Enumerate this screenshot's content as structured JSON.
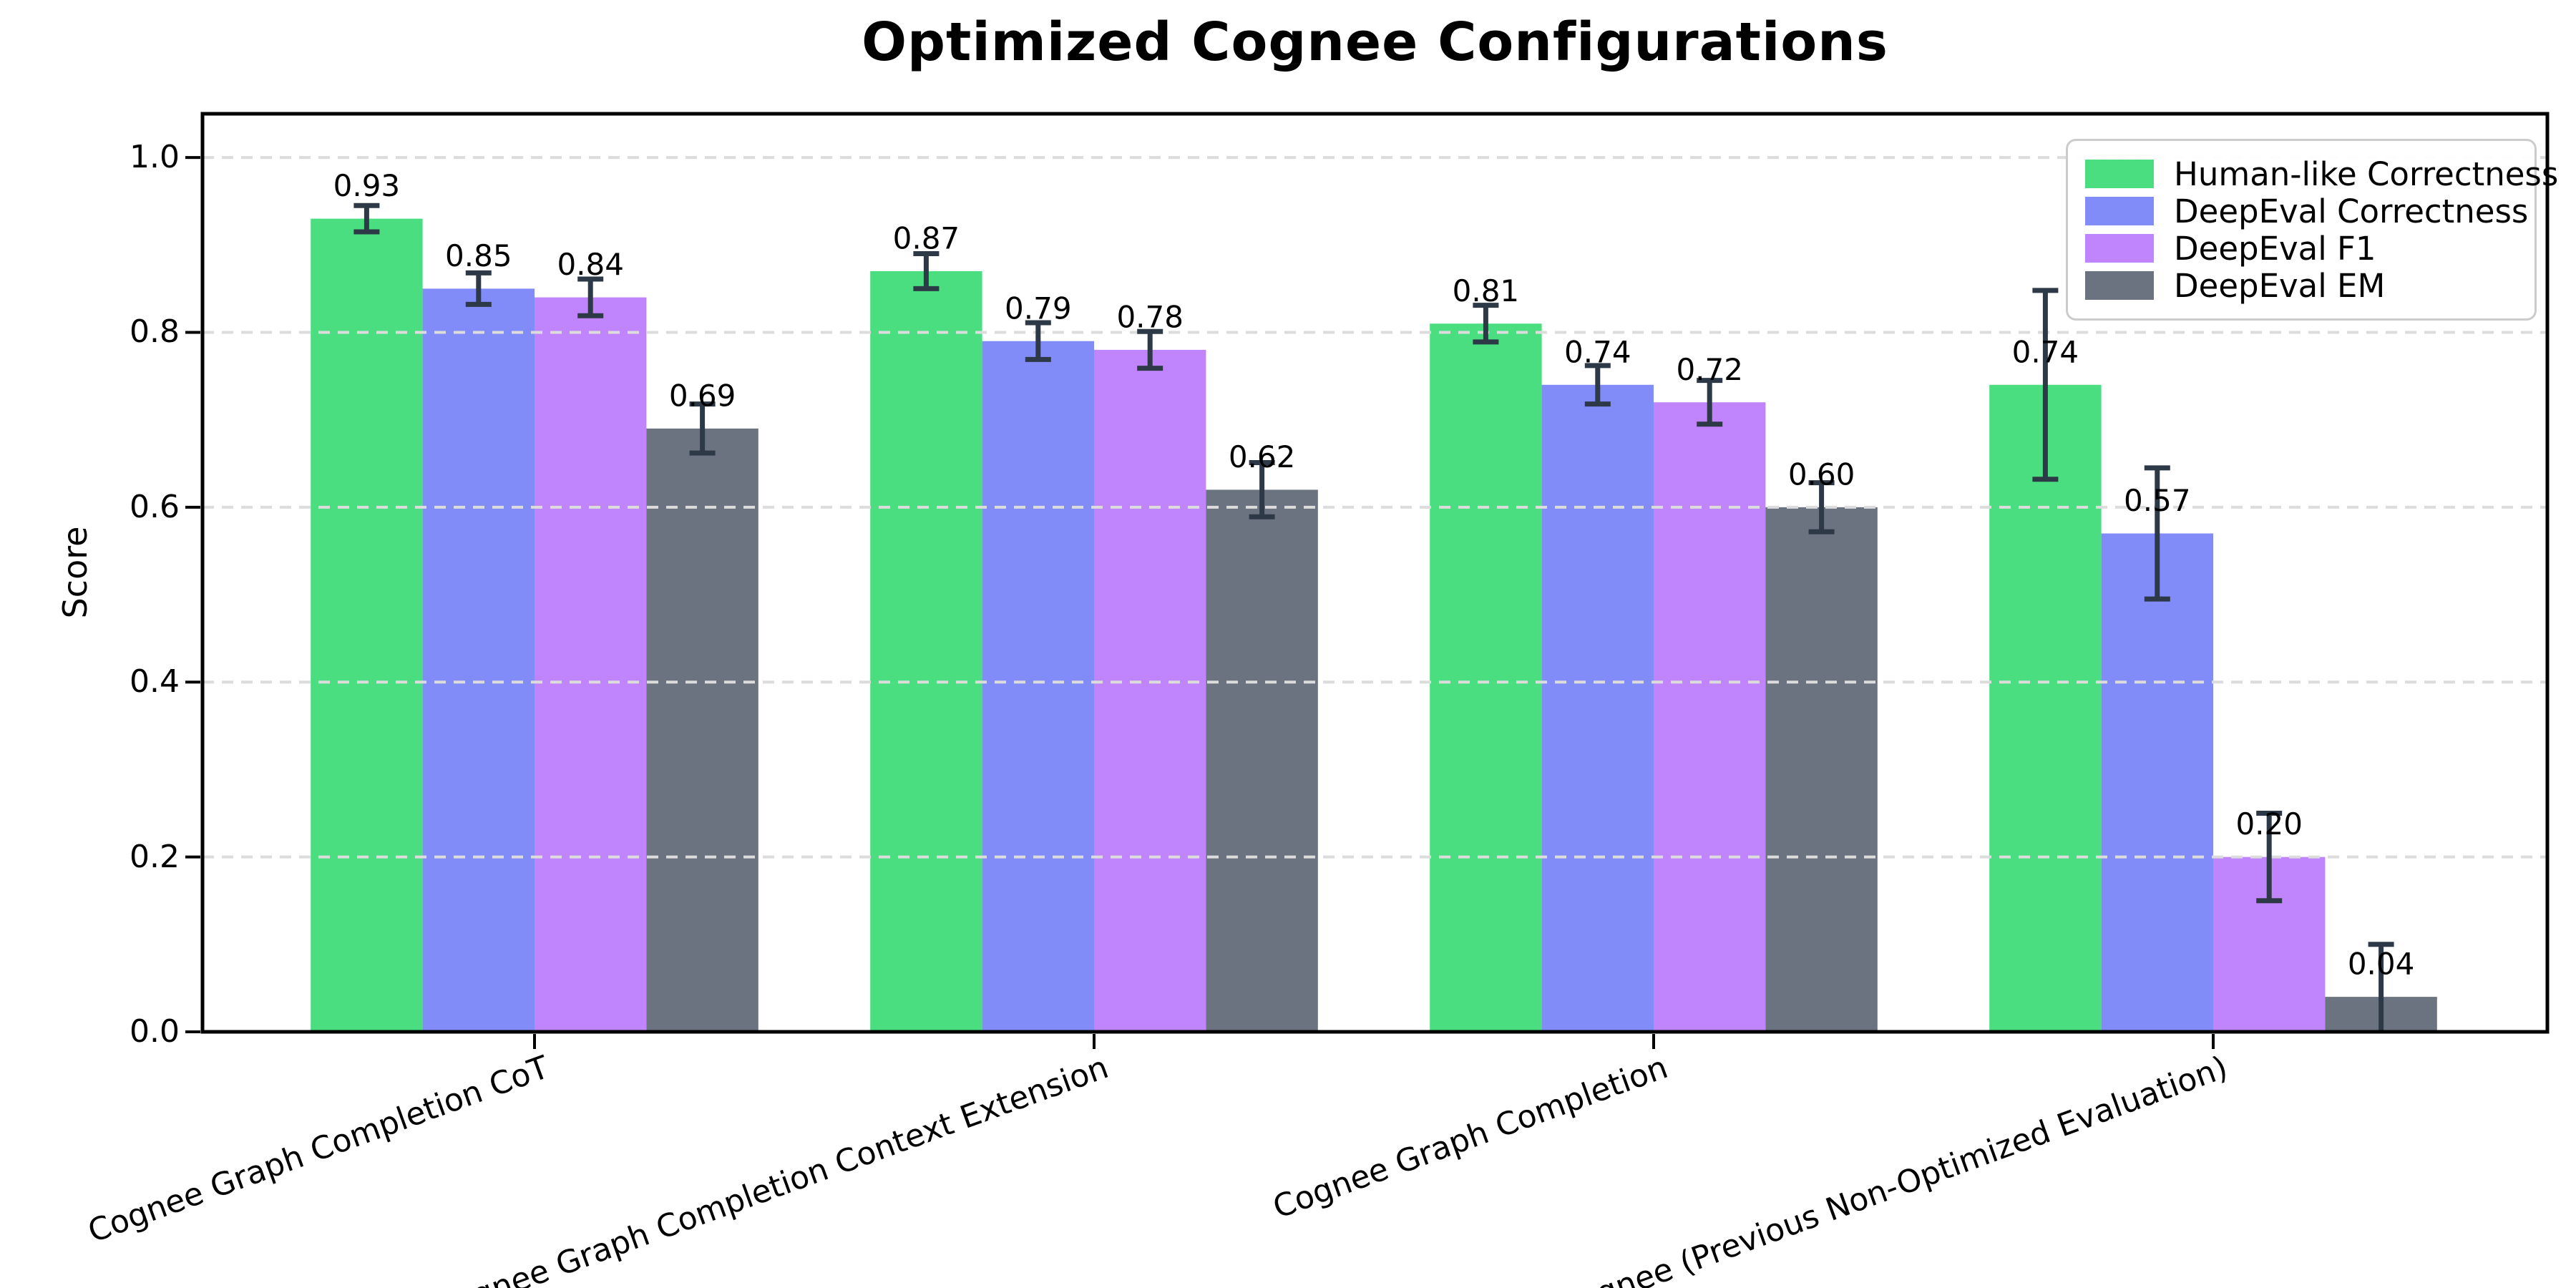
{
  "title": "Optimized Cognee Configurations",
  "chart_data": {
    "type": "bar",
    "title": "Optimized Cognee Configurations",
    "xlabel": "",
    "ylabel": "Score",
    "ylim": [
      0,
      1.05
    ],
    "ytick_labels": [
      "0.0",
      "0.2",
      "0.4",
      "0.6",
      "0.8",
      "1.0"
    ],
    "ytick_values": [
      0,
      0.2,
      0.4,
      0.6,
      0.8,
      1.0
    ],
    "grid": "horizontal-dashed",
    "grid_color": "#dcdcdc",
    "legend_position": "upper-right",
    "errorbar_color": "#2e3947",
    "bar_value_labels": true,
    "categories": [
      "Cognee Graph Completion CoT",
      "Cognee Graph Completion Context Extension",
      "Cognee Graph Completion",
      "Cognee (Previous Non-Optimized Evaluation)"
    ],
    "series": [
      {
        "name": "Human-like Correctness",
        "color": "#4ade80",
        "values": [
          0.93,
          0.87,
          0.81,
          0.74
        ],
        "errors": [
          0.015,
          0.02,
          0.021,
          0.108
        ]
      },
      {
        "name": "DeepEval Correctness",
        "color": "#818cf8",
        "values": [
          0.85,
          0.79,
          0.74,
          0.57
        ],
        "errors": [
          0.018,
          0.021,
          0.022,
          0.075
        ]
      },
      {
        "name": "DeepEval F1",
        "color": "#c084fc",
        "values": [
          0.84,
          0.78,
          0.72,
          0.2
        ],
        "errors": [
          0.021,
          0.021,
          0.025,
          0.05
        ]
      },
      {
        "name": "DeepEval EM",
        "color": "#6b7280",
        "values": [
          0.69,
          0.62,
          0.6,
          0.04
        ],
        "errors": [
          0.028,
          0.031,
          0.028,
          0.06
        ]
      }
    ]
  }
}
